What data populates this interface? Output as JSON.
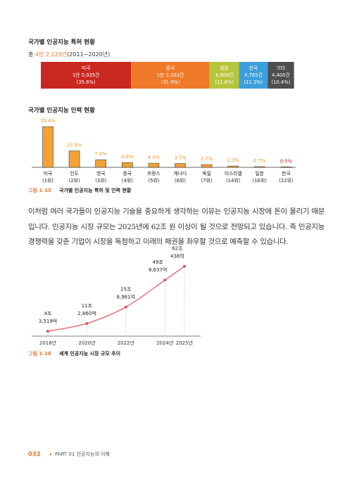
{
  "chart_data": [
    {
      "type": "stacked_bar",
      "title": "국가별 인공지능 특허 현황",
      "subtitle": {
        "prefix": "총",
        "total": "4만 2,229건",
        "period": "(2011~2020년)"
      },
      "categories": [
        "미국",
        "중국",
        "일본",
        "한국",
        "기타"
      ],
      "count_labels": [
        "1만 5,035건",
        "1만 3,103건",
        "4,906건",
        "4,785건",
        "4,400건"
      ],
      "values": [
        35.6,
        31.0,
        11.6,
        11.3,
        10.4
      ],
      "value_labels": [
        "(35.6%)",
        "(31.0%)",
        "(11.6%)",
        "(11.3%)",
        "(10.4%)"
      ],
      "colors": [
        "#c9281f",
        "#ef7a2a",
        "#b5c63c",
        "#3c9fdc",
        "#4e4e50"
      ]
    },
    {
      "type": "bar",
      "title": "국가별 인공지능 인력 현황",
      "categories": [
        "미국",
        "인도",
        "영국",
        "중국",
        "프랑스",
        "캐나다",
        "독일",
        "이스라엘",
        "일본",
        "한국"
      ],
      "ranks": [
        "(1위)",
        "(2위)",
        "(3위)",
        "(4위)",
        "(5위)",
        "(6위)",
        "(7위)",
        "(14위)",
        "(16위)",
        "(22위)"
      ],
      "values": [
        39.4,
        15.9,
        7.4,
        4.6,
        4.0,
        3.7,
        2.7,
        1.3,
        0.7,
        0.5
      ],
      "value_labels": [
        "39.4%",
        "15.9%",
        "7.4%",
        "4.6%",
        "4.0%",
        "3.7%",
        "2.7%",
        "1.3%",
        "0.7%",
        "0.5%"
      ],
      "color": "#f4a236",
      "label_colors": [
        "#ef9a2a",
        "#ef9a2a",
        "#ef9a2a",
        "#ef9a2a",
        "#ef9a2a",
        "#ef9a2a",
        "#ef9a2a",
        "#ef9a2a",
        "#ef9a2a",
        "#d0201c"
      ],
      "caption": {
        "number": "그림 1-15",
        "text": "국가별 인공지능 특허 및 인력 현황"
      }
    },
    {
      "type": "line",
      "x": [
        2018,
        2020,
        2022,
        2024,
        2025
      ],
      "x_labels": [
        "2018년",
        "2020년",
        "2022년",
        "2024년",
        "2025년"
      ],
      "values": [
        43519,
        112860,
        258981,
        498637,
        620438
      ],
      "value_labels": [
        "4조 3,519억",
        "11조 2,860억",
        "25조 8,981억",
        "49조 8,637억",
        "62조 438억"
      ],
      "color": "#e4505c",
      "caption": {
        "number": "그림 1-16",
        "text": "세계 인공지능 시장 규모 추이"
      }
    }
  ],
  "body": {
    "paragraph": "이처럼 여러 국가들이 인공지능 기술을 중요하게 생각하는 이유는 인공지능 시장에 돈이 몰리기 때문입니다. 인공지능 시장 규모는 2025년에 62조 원 이상이 될 것으로 전망되고 있습니다. 즉 인공지능 경쟁력을 갖춘 기업이 시장을 독점하고 미래의 패권을 좌우할 것으로 예측할 수 있습니다."
  },
  "footer": {
    "page": "032",
    "part": "PART 01",
    "chapter": "인공지능의 이해"
  }
}
